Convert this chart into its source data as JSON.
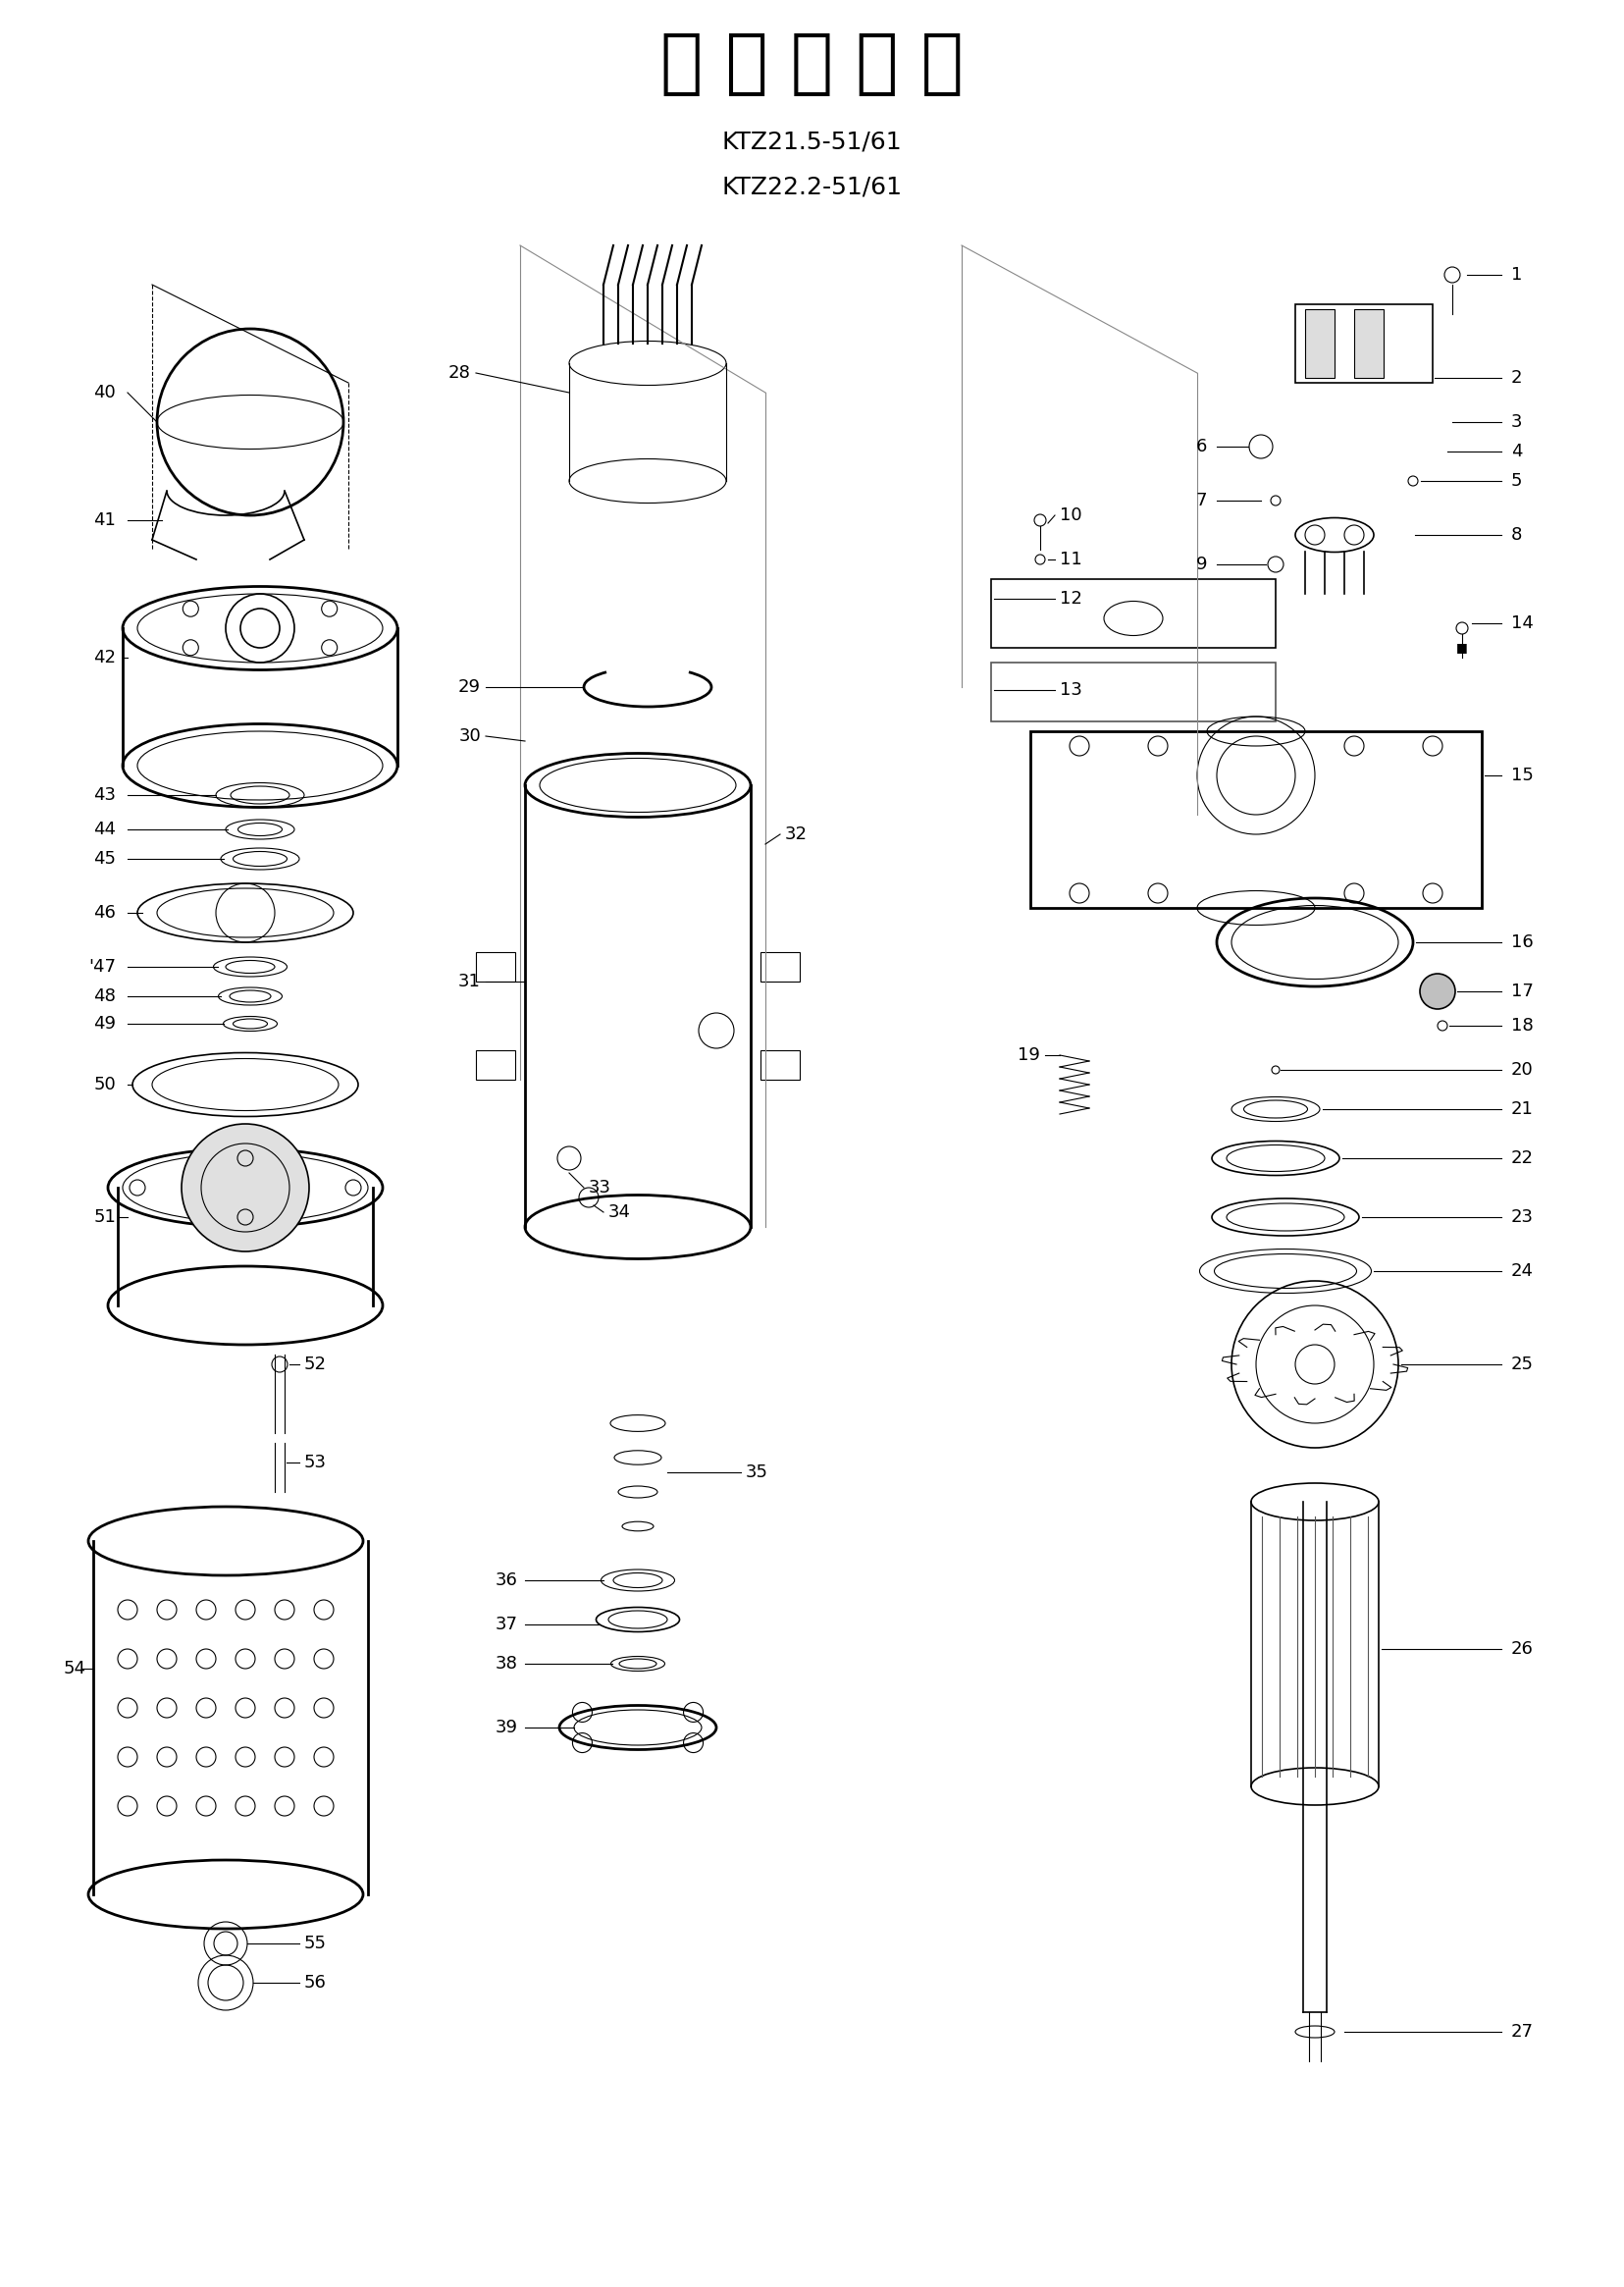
{
  "title": "分 解 組 立 図",
  "subtitle1": "KTZ21.5-51/61",
  "subtitle2": "KTZ22.2-51/61",
  "background_color": "#ffffff",
  "text_color": "#000000",
  "line_color": "#000000",
  "title_fontsize": 52,
  "subtitle_fontsize": 18,
  "label_fontsize": 13,
  "parts_labels": {
    "left_column": [
      40,
      41,
      42,
      43,
      44,
      45,
      46,
      47,
      48,
      49,
      50,
      51,
      52,
      53,
      54,
      55,
      56
    ],
    "center_column": [
      28,
      29,
      30,
      31,
      32,
      33,
      34,
      35,
      36,
      37,
      38,
      39
    ],
    "right_column": [
      1,
      2,
      3,
      4,
      5,
      6,
      7,
      8,
      9,
      10,
      11,
      12,
      13,
      14,
      15,
      16,
      17,
      18,
      19,
      20,
      21,
      22,
      23,
      24,
      25,
      26,
      27
    ]
  }
}
